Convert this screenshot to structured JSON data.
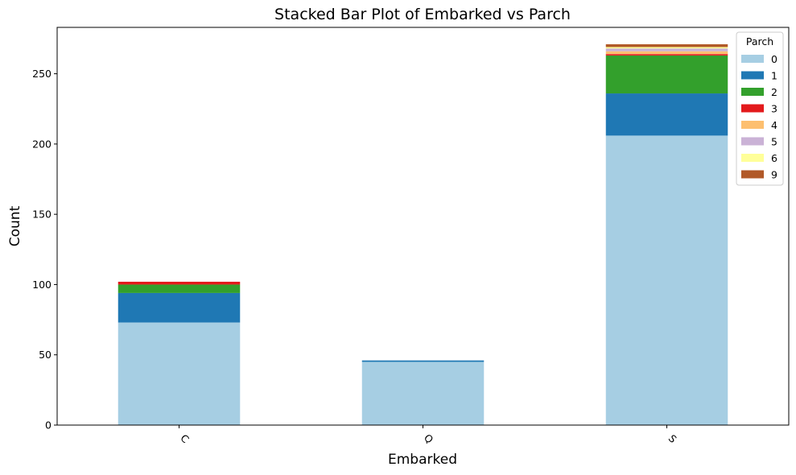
{
  "chart_data": {
    "type": "bar",
    "stacked": true,
    "title": "Stacked Bar Plot of Embarked vs Parch",
    "xlabel": "Embarked",
    "ylabel": "Count",
    "categories": [
      "C",
      "Q",
      "S"
    ],
    "ylim": [
      0,
      283
    ],
    "yticks": [
      0,
      50,
      100,
      150,
      200,
      250
    ],
    "grid": false,
    "legend": {
      "title": "Parch",
      "placement": "top-right"
    },
    "series": [
      {
        "name": "0",
        "color": "#a6cee3",
        "values": [
          73,
          45,
          206
        ]
      },
      {
        "name": "1",
        "color": "#1f78b4",
        "values": [
          21,
          1,
          30
        ]
      },
      {
        "name": "2",
        "color": "#33a02c",
        "values": [
          6,
          0,
          27
        ]
      },
      {
        "name": "3",
        "color": "#e31a1c",
        "values": [
          2,
          0,
          1
        ]
      },
      {
        "name": "4",
        "color": "#fdbf6f",
        "values": [
          0,
          0,
          2
        ]
      },
      {
        "name": "5",
        "color": "#cab2d6",
        "values": [
          0,
          0,
          2
        ]
      },
      {
        "name": "6",
        "color": "#ffff99",
        "values": [
          0,
          0,
          1
        ]
      },
      {
        "name": "9",
        "color": "#b15928",
        "values": [
          0,
          0,
          2
        ]
      }
    ]
  }
}
